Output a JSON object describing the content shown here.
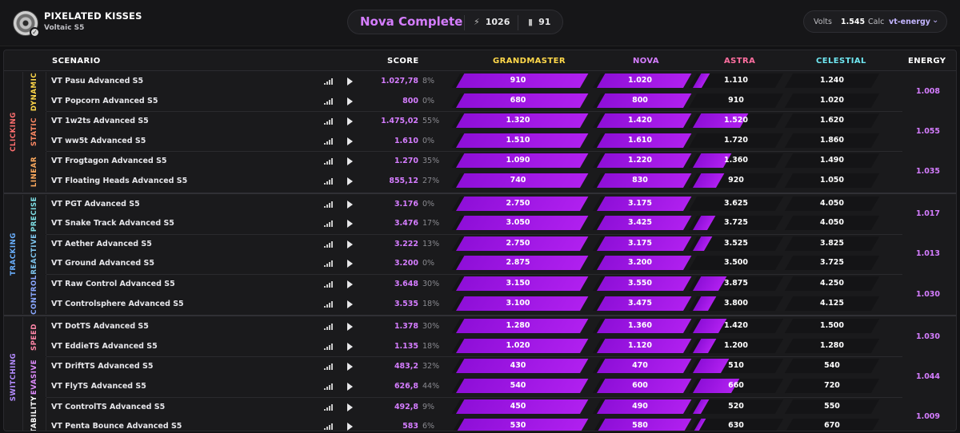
{
  "profile": {
    "name": "PIXELATED KISSES",
    "subtitle": "Voltaic S5"
  },
  "summary": {
    "rank": "Nova Complete",
    "energy_total": "1026",
    "count": "91"
  },
  "calc": {
    "volts_label": "Volts",
    "volts_value": "1.545",
    "calc_label": "Calc",
    "calc_value": "vt-energy"
  },
  "headers": {
    "scenario": "SCENARIO",
    "score": "SCORE",
    "ranks": [
      "GRANDMASTER",
      "NOVA",
      "ASTRA",
      "CELESTIAL"
    ],
    "energy": "ENERGY"
  },
  "colors": {
    "accent": "#d57dff",
    "fill": "#9a12e0",
    "grandmaster": "#ffd84a",
    "nova": "#d57dff",
    "astra": "#ff6fa0",
    "celestial": "#6fe6f0"
  },
  "categories": [
    {
      "label": "CLICKING",
      "color": "#ff6f6f",
      "groups": [
        {
          "label": "DYNAMIC",
          "color": "#ffd84a",
          "energy": "1.008",
          "rows": [
            {
              "name": "VT Pasu Advanced S5",
              "score": "1.027,78",
              "pct": "8%",
              "thresholds": [
                "910",
                "1.020",
                "1.110",
                "1.240"
              ],
              "fills": [
                1,
                1,
                0.1,
                0
              ]
            },
            {
              "name": "VT Popcorn Advanced S5",
              "score": "800",
              "pct": "0%",
              "thresholds": [
                "680",
                "800",
                "910",
                "1.020"
              ],
              "fills": [
                1,
                1,
                0,
                0
              ]
            }
          ]
        },
        {
          "label": "STATIC",
          "color": "#ff8a65",
          "energy": "1.055",
          "rows": [
            {
              "name": "VT 1w2ts Advanced S5",
              "score": "1.475,02",
              "pct": "55%",
              "thresholds": [
                "1.320",
                "1.420",
                "1.520",
                "1.620"
              ],
              "fills": [
                1,
                1,
                0.55,
                0
              ]
            },
            {
              "name": "VT ww5t Advanced S5",
              "score": "1.610",
              "pct": "0%",
              "thresholds": [
                "1.510",
                "1.610",
                "1.720",
                "1.860"
              ],
              "fills": [
                1,
                1,
                0,
                0
              ]
            }
          ]
        },
        {
          "label": "LINEAR",
          "color": "#ffab5e",
          "energy": "1.035",
          "rows": [
            {
              "name": "VT Frogtagon Advanced S5",
              "score": "1.270",
              "pct": "35%",
              "thresholds": [
                "1.090",
                "1.220",
                "1.360",
                "1.490"
              ],
              "fills": [
                1,
                1,
                0.35,
                0
              ]
            },
            {
              "name": "VT Floating Heads Advanced S5",
              "score": "855,12",
              "pct": "27%",
              "thresholds": [
                "740",
                "830",
                "920",
                "1.050"
              ],
              "fills": [
                1,
                1,
                0.27,
                0
              ]
            }
          ]
        }
      ]
    },
    {
      "label": "TRACKING",
      "color": "#6ab0ff",
      "groups": [
        {
          "label": "PRECISE",
          "color": "#7fe0e6",
          "energy": "1.017",
          "rows": [
            {
              "name": "VT PGT Advanced S5",
              "score": "3.176",
              "pct": "0%",
              "thresholds": [
                "2.750",
                "3.175",
                "3.625",
                "4.050"
              ],
              "fills": [
                1,
                1,
                0,
                0
              ]
            },
            {
              "name": "VT Snake Track Advanced S5",
              "score": "3.476",
              "pct": "17%",
              "thresholds": [
                "3.050",
                "3.425",
                "3.725",
                "4.050"
              ],
              "fills": [
                1,
                1,
                0.17,
                0
              ]
            }
          ]
        },
        {
          "label": "REACTIVE",
          "color": "#7fc7f0",
          "energy": "1.013",
          "rows": [
            {
              "name": "VT Aether Advanced S5",
              "score": "3.222",
              "pct": "13%",
              "thresholds": [
                "2.750",
                "3.175",
                "3.525",
                "3.825"
              ],
              "fills": [
                1,
                1,
                0.13,
                0
              ]
            },
            {
              "name": "VT Ground Advanced S5",
              "score": "3.200",
              "pct": "0%",
              "thresholds": [
                "2.875",
                "3.200",
                "3.500",
                "3.725"
              ],
              "fills": [
                1,
                1,
                0,
                0
              ]
            }
          ]
        },
        {
          "label": "CONTROL",
          "color": "#8aa8ff",
          "energy": "1.030",
          "rows": [
            {
              "name": "VT Raw Control Advanced S5",
              "score": "3.648",
              "pct": "30%",
              "thresholds": [
                "3.150",
                "3.550",
                "3.875",
                "4.250"
              ],
              "fills": [
                1,
                1,
                0.3,
                0
              ]
            },
            {
              "name": "VT Controlsphere Advanced S5",
              "score": "3.535",
              "pct": "18%",
              "thresholds": [
                "3.100",
                "3.475",
                "3.800",
                "4.125"
              ],
              "fills": [
                1,
                1,
                0.18,
                0
              ]
            }
          ]
        }
      ]
    },
    {
      "label": "SWITCHING",
      "color": "#b48cff",
      "groups": [
        {
          "label": "SPEED",
          "color": "#ff86a8",
          "energy": "1.030",
          "rows": [
            {
              "name": "VT DotTS Advanced S5",
              "score": "1.378",
              "pct": "30%",
              "thresholds": [
                "1.280",
                "1.360",
                "1.420",
                "1.500"
              ],
              "fills": [
                1,
                1,
                0.3,
                0
              ]
            },
            {
              "name": "VT EddieTS Advanced S5",
              "score": "1.135",
              "pct": "18%",
              "thresholds": [
                "1.020",
                "1.120",
                "1.200",
                "1.280"
              ],
              "fills": [
                1,
                1,
                0.18,
                0
              ]
            }
          ]
        },
        {
          "label": "EVASIVE",
          "color": "#e08cff",
          "energy": "1.044",
          "rows": [
            {
              "name": "VT DriftTS Advanced S5",
              "score": "483,2",
              "pct": "32%",
              "thresholds": [
                "430",
                "470",
                "510",
                "540"
              ],
              "fills": [
                1,
                1,
                0.32,
                0
              ]
            },
            {
              "name": "VT FlyTS Advanced S5",
              "score": "626,8",
              "pct": "44%",
              "thresholds": [
                "540",
                "600",
                "660",
                "720"
              ],
              "fills": [
                1,
                1,
                0.44,
                0
              ]
            }
          ]
        },
        {
          "label": "STABILITY",
          "color": "#ffffff",
          "energy": "1.009",
          "rows": [
            {
              "name": "VT ControlTS Advanced S5",
              "score": "492,8",
              "pct": "9%",
              "thresholds": [
                "450",
                "490",
                "520",
                "550"
              ],
              "fills": [
                1,
                1,
                0.09,
                0
              ]
            },
            {
              "name": "VT Penta Bounce Advanced S5",
              "score": "583",
              "pct": "6%",
              "thresholds": [
                "530",
                "580",
                "630",
                "670"
              ],
              "fills": [
                1,
                1,
                0.06,
                0
              ]
            }
          ]
        }
      ]
    }
  ]
}
